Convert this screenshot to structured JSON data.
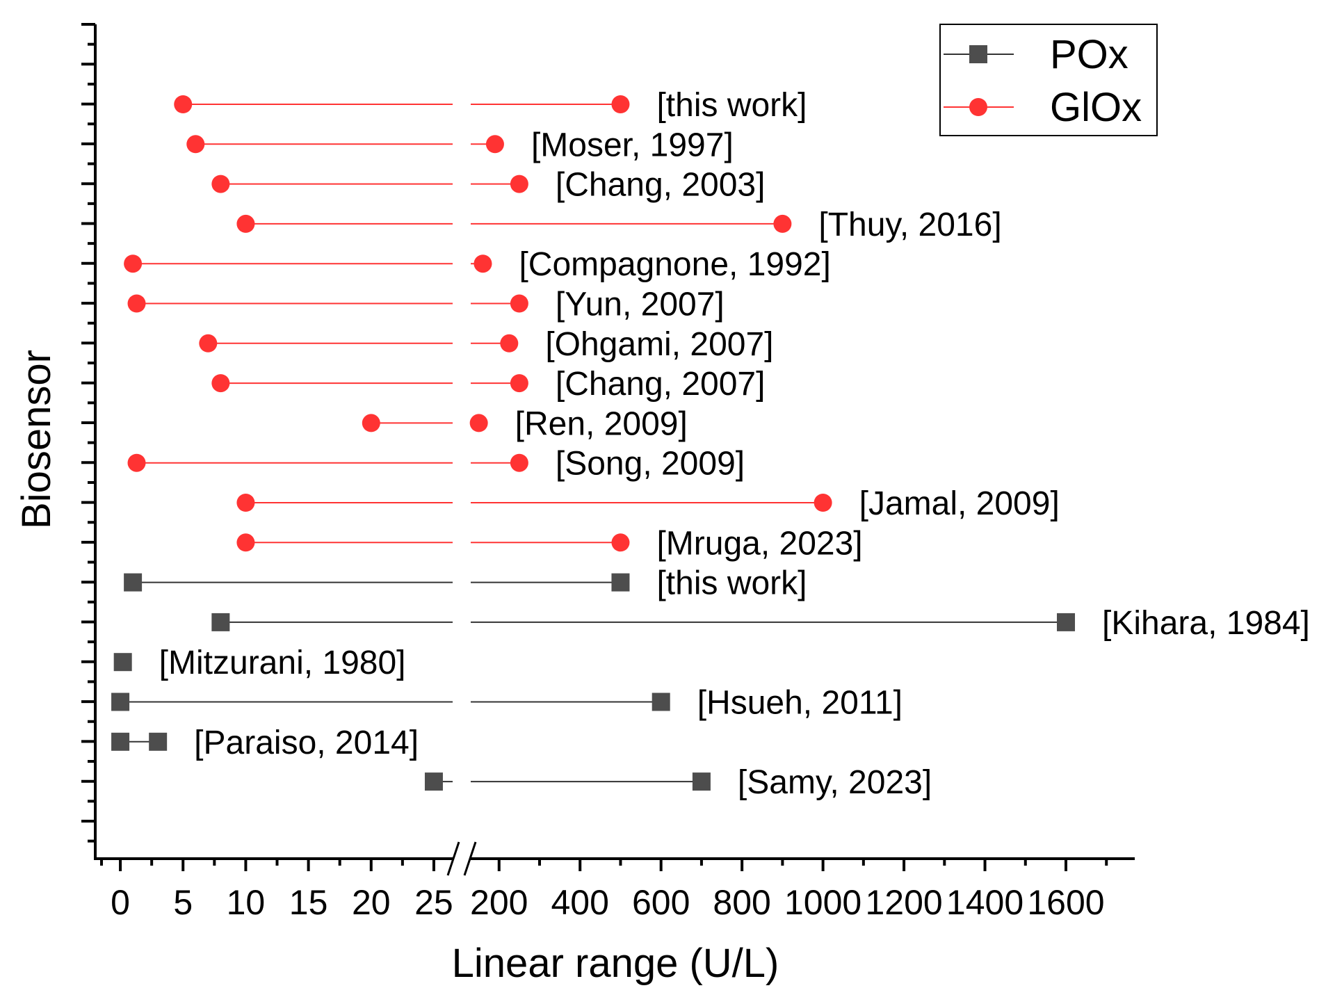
{
  "chart_data": {
    "type": "range-dot",
    "xlabel": "Linear range (U/L)",
    "ylabel": "Biosensor",
    "x_axis": {
      "broken": true,
      "segment1": {
        "range": [
          -2,
          26.5
        ],
        "ticks": [
          0,
          5,
          10,
          15,
          20,
          25
        ],
        "tick_labels": [
          "0",
          "5",
          "10",
          "15",
          "20",
          "25"
        ]
      },
      "segment2": {
        "range": [
          130,
          1770
        ],
        "ticks": [
          200,
          400,
          600,
          800,
          1000,
          1200,
          1400,
          1600
        ],
        "tick_labels": [
          "200",
          "400",
          "600",
          "800",
          "1000",
          "1200",
          "1400",
          "1600"
        ]
      }
    },
    "legend": [
      {
        "name": "POx",
        "marker": "square",
        "color": "#4d4d4d"
      },
      {
        "name": "GlOx",
        "marker": "circle",
        "color": "#ff3333"
      }
    ],
    "series": [
      {
        "name": "GlOx",
        "color": "#ff3333",
        "line_color": "#ff3333",
        "marker": "circle",
        "rows": [
          {
            "label": "[this work]",
            "low": 5,
            "high": 500
          },
          {
            "label": "[Moser, 1997]",
            "low": 6,
            "high": 190
          },
          {
            "label": "[Chang, 2003]",
            "low": 8,
            "high": 250
          },
          {
            "label": "[Thuy, 2016]",
            "low": 10,
            "high": 900
          },
          {
            "label": "[Compagnone, 1992]",
            "low": 1,
            "high": 160
          },
          {
            "label": "[Yun, 2007]",
            "low": 1.3,
            "high": 250
          },
          {
            "label": "[Ohgami, 2007]",
            "low": 7,
            "high": 225
          },
          {
            "label": "[Chang, 2007]",
            "low": 8,
            "high": 250
          },
          {
            "label": "[Ren, 2009]",
            "low": 20,
            "high": 150
          },
          {
            "label": "[Song, 2009]",
            "low": 1.3,
            "high": 250
          },
          {
            "label": "[Jamal, 2009]",
            "low": 10,
            "high": 1000
          },
          {
            "label": "[Mruga, 2023]",
            "low": 10,
            "high": 500
          }
        ]
      },
      {
        "name": "POx",
        "color": "#4d4d4d",
        "line_color": "#333333",
        "marker": "square",
        "rows": [
          {
            "label": "[this work]",
            "low": 1,
            "high": 500
          },
          {
            "label": "[Kihara, 1984]",
            "low": 8,
            "high": 1600
          },
          {
            "label": "[Mitzurani, 1980]",
            "low": 0.2,
            "high": 0.2
          },
          {
            "label": "[Hsueh, 2011]",
            "low": 0,
            "high": 600
          },
          {
            "label": "[Paraiso, 2014]",
            "low": 0,
            "high": 3
          },
          {
            "label": "[Samy, 2023]",
            "low": 25,
            "high": 700
          }
        ]
      }
    ]
  }
}
